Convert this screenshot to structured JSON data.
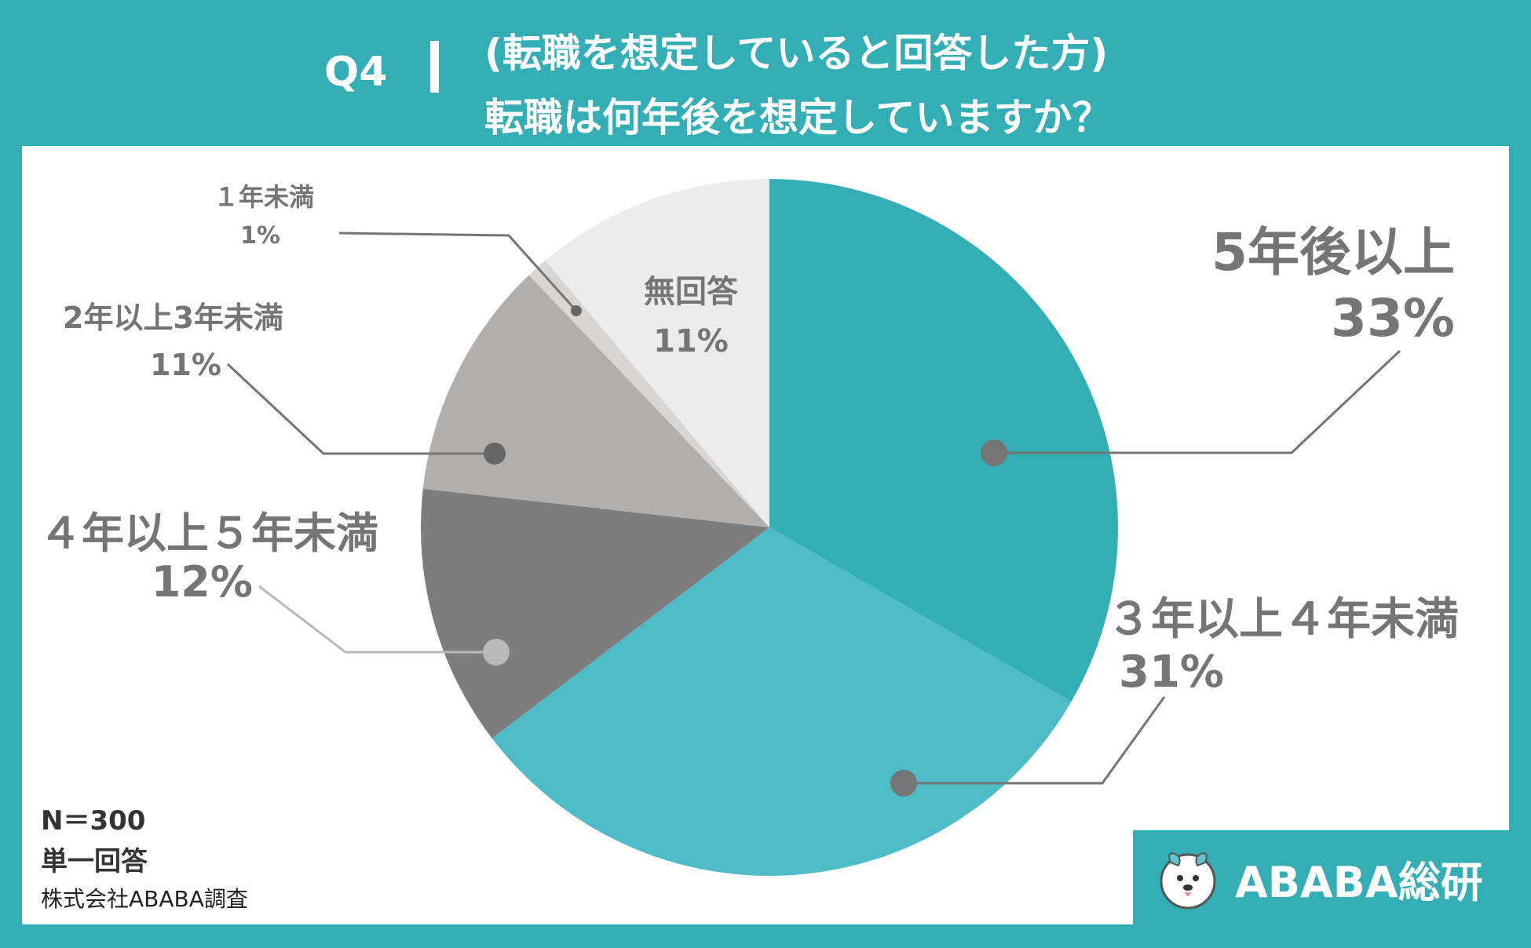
{
  "header": {
    "q_number": "Q4",
    "line1": "(転職を想定していると回答した方)",
    "line2": "転職は何年後を想定していますか？"
  },
  "notes": {
    "n": "N＝300",
    "type": "単一回答",
    "source": "株式会社ABABA調査"
  },
  "brand": {
    "name": "ABABA総研"
  },
  "colors": {
    "background": "#34aeb5",
    "panel": "#ffffff",
    "label_text": "#757575"
  },
  "chart_data": {
    "type": "pie",
    "categories": [
      "5年後以上",
      "３年以上４年未満",
      "４年以上５年未満",
      "2年以上3年未満",
      "１年未満",
      "無回答"
    ],
    "values": [
      33,
      31,
      12,
      11,
      1,
      11
    ],
    "percent_labels": [
      "33%",
      "31%",
      "12%",
      "11%",
      "1%",
      "11%"
    ],
    "colors": [
      "#34aeb5",
      "#4dbcc6",
      "#7d7d7d",
      "#b1aeac",
      "#d8d5d3",
      "#ececec"
    ],
    "start_angle_deg": 0,
    "direction": "clockwise",
    "title": ""
  }
}
